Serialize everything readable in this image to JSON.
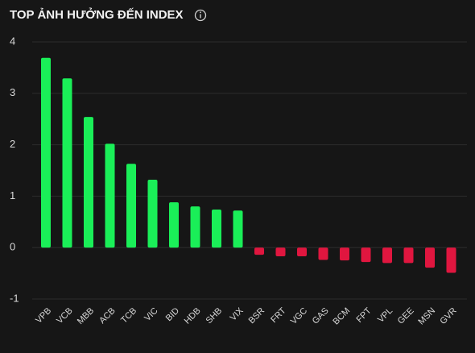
{
  "chart_data": {
    "type": "bar",
    "title": "TOP ẢNH HƯỞNG ĐẾN INDEX",
    "categories": [
      "VPB",
      "VCB",
      "MBB",
      "ACB",
      "TCB",
      "VIC",
      "BID",
      "HDB",
      "SHB",
      "VIX",
      "BSR",
      "FRT",
      "VGC",
      "GAS",
      "BCM",
      "FPT",
      "VPL",
      "GEE",
      "MSN",
      "GVR"
    ],
    "values": [
      3.69,
      3.29,
      2.54,
      2.02,
      1.63,
      1.32,
      0.88,
      0.8,
      0.74,
      0.72,
      -0.14,
      -0.17,
      -0.17,
      -0.24,
      -0.25,
      -0.28,
      -0.3,
      -0.3,
      -0.39,
      -0.49
    ],
    "colors": {
      "positive": "#1aef58",
      "negative": "#e0163f"
    },
    "ylim": [
      -1,
      4
    ],
    "yticks": [
      -1,
      0,
      1,
      2,
      3,
      4
    ],
    "grid": true
  }
}
